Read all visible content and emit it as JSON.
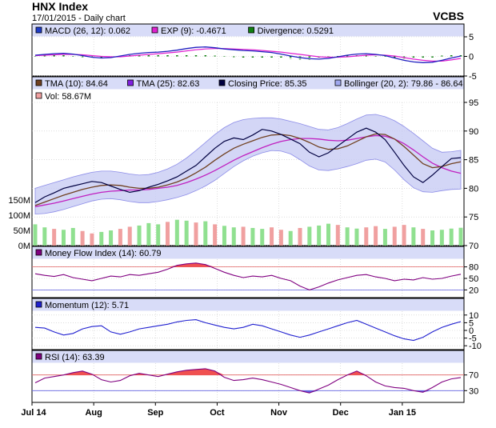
{
  "header": {
    "title": "HNX Index",
    "subtitle": "17/01/2015 - Daily chart",
    "brand": "VCBS"
  },
  "colors": {
    "panel_bg": "#ffffff",
    "legend_bg": "#d8dcf8",
    "grid": "#c8c8c8",
    "bollinger_fill": "#c8ccf4",
    "bollinger_edge": "#8c8ce8",
    "tma10": "#704020",
    "tma25": "#c020c0",
    "close": "#000040",
    "macd": "#2020c0",
    "exp": "#e020d0",
    "divergence": "#108010",
    "mfi": "#800080",
    "momentum": "#2020d0",
    "rsi": "#800080",
    "overbought_fill": "#f05050",
    "oversold_fill": "#6060e0",
    "vol_up": "#90e090",
    "vol_down": "#f0a0a0",
    "ref_line_high": "#e06060",
    "ref_line_low": "#6060e0"
  },
  "chart_data": [
    {
      "id": "macd",
      "type": "line",
      "legend": [
        {
          "icon": "blue-square-icon",
          "color": "#1e3cc8",
          "text": "MACD (26, 12): 0.062"
        },
        {
          "icon": "magenta-square-icon",
          "color": "#e020d0",
          "text": "EXP (9): -0.4671"
        },
        {
          "icon": "green-square-icon",
          "color": "#108010",
          "text": "Divergence: 0.5291"
        }
      ],
      "ylim": [
        -5,
        5
      ],
      "yticks": [
        -5,
        0,
        5
      ],
      "series": {
        "macd": [
          0.3,
          0.5,
          0.7,
          0.8,
          0.6,
          0.2,
          -0.2,
          -0.4,
          -0.3,
          0.1,
          0.5,
          0.8,
          1.0,
          1.1,
          1.3,
          1.6,
          2.0,
          2.3,
          2.4,
          2.2,
          1.9,
          1.7,
          1.5,
          1.4,
          1.2,
          1.0,
          0.6,
          0.1,
          -0.3,
          -0.6,
          -0.7,
          -0.5,
          -0.1,
          0.3,
          0.6,
          0.7,
          0.5,
          0.2,
          -0.4,
          -1.0,
          -1.4,
          -1.6,
          -1.5,
          -1.0,
          -0.4,
          0.1
        ],
        "exp": [
          0.2,
          0.3,
          0.4,
          0.5,
          0.5,
          0.4,
          0.2,
          0.0,
          -0.1,
          -0.1,
          0.1,
          0.3,
          0.5,
          0.7,
          0.9,
          1.1,
          1.4,
          1.7,
          1.9,
          2.0,
          2.0,
          1.9,
          1.8,
          1.7,
          1.5,
          1.3,
          1.1,
          0.8,
          0.5,
          0.2,
          -0.1,
          -0.2,
          -0.2,
          -0.1,
          0.1,
          0.3,
          0.4,
          0.3,
          0.1,
          -0.3,
          -0.7,
          -1.0,
          -1.2,
          -1.2,
          -0.9,
          -0.5
        ]
      }
    },
    {
      "id": "price",
      "type": "line",
      "legend": [
        {
          "icon": "brown-square-icon",
          "color": "#704020",
          "text": "TMA (10): 84.64"
        },
        {
          "icon": "purple-square-icon",
          "color": "#8020e0",
          "text": "TMA (25): 82.63"
        },
        {
          "icon": "navy-square-icon",
          "color": "#000040",
          "text": "Closing Price: 85.35"
        },
        {
          "icon": "lavender-square-icon",
          "color": "#a0a8f0",
          "text": "Bollinger (20, 2): 79.86 - 86.64"
        }
      ],
      "legend2": [
        {
          "icon": "pink-square-icon",
          "color": "#f0a0a0",
          "text": "Vol: 58.67M"
        }
      ],
      "ylim": [
        70,
        95
      ],
      "yticks": [
        70,
        75,
        80,
        85,
        90,
        95
      ],
      "vol_ticks": [
        "0M",
        "50M",
        "100M",
        "150M"
      ],
      "vol_max": 150,
      "close": [
        77.5,
        78.5,
        79.2,
        80.0,
        80.4,
        80.8,
        81.2,
        81.0,
        80.4,
        79.8,
        79.3,
        79.6,
        80.2,
        80.7,
        81.3,
        82.0,
        83.0,
        84.0,
        85.5,
        87.0,
        88.2,
        88.8,
        88.5,
        89.3,
        90.3,
        90.0,
        89.4,
        88.6,
        87.8,
        86.3,
        85.5,
        86.2,
        87.4,
        88.6,
        89.8,
        90.5,
        89.8,
        88.5,
        86.3,
        84.0,
        82.0,
        81.0,
        82.3,
        83.8,
        85.2,
        85.35
      ],
      "tma10": [
        77.0,
        77.6,
        78.2,
        78.8,
        79.3,
        79.8,
        80.2,
        80.5,
        80.6,
        80.5,
        80.2,
        80.0,
        80.0,
        80.2,
        80.6,
        81.1,
        81.8,
        82.7,
        83.7,
        84.9,
        86.0,
        87.0,
        87.7,
        88.3,
        88.9,
        89.3,
        89.4,
        89.2,
        88.7,
        88.0,
        87.2,
        86.8,
        86.9,
        87.4,
        88.2,
        89.0,
        89.5,
        89.4,
        88.6,
        87.3,
        85.8,
        84.3,
        83.6,
        83.8,
        84.3,
        84.64
      ],
      "tma25": [
        76.8,
        77.1,
        77.4,
        77.8,
        78.2,
        78.6,
        79.0,
        79.3,
        79.5,
        79.6,
        79.7,
        79.7,
        79.8,
        80.0,
        80.2,
        80.5,
        81.0,
        81.6,
        82.3,
        83.1,
        84.0,
        84.9,
        85.7,
        86.4,
        87.1,
        87.7,
        88.2,
        88.5,
        88.7,
        88.7,
        88.6,
        88.4,
        88.3,
        88.4,
        88.7,
        89.0,
        89.2,
        89.1,
        88.6,
        87.8,
        86.7,
        85.5,
        84.4,
        83.6,
        83.0,
        82.63
      ],
      "boll_upper": [
        80.0,
        80.5,
        81.0,
        81.5,
        82.0,
        82.4,
        82.8,
        83.0,
        83.0,
        82.8,
        82.5,
        82.3,
        82.4,
        82.8,
        83.4,
        84.2,
        85.3,
        86.6,
        88.0,
        89.4,
        90.6,
        91.5,
        92.0,
        92.2,
        92.3,
        92.3,
        92.1,
        91.7,
        91.3,
        90.8,
        90.3,
        90.2,
        90.6,
        91.3,
        92.1,
        92.8,
        92.9,
        92.5,
        91.8,
        90.8,
        89.6,
        88.3,
        87.0,
        86.3,
        86.4,
        86.64
      ],
      "boll_lower": [
        75.5,
        75.6,
        75.9,
        76.3,
        76.8,
        77.3,
        77.8,
        78.1,
        78.2,
        78.0,
        77.7,
        77.5,
        77.5,
        77.7,
        78.0,
        78.4,
        78.9,
        79.6,
        80.4,
        81.4,
        82.6,
        83.8,
        84.8,
        85.6,
        86.2,
        86.6,
        86.5,
        86.0,
        85.0,
        83.9,
        83.2,
        83.1,
        83.4,
        83.8,
        84.3,
        84.9,
        85.1,
        84.6,
        83.2,
        81.5,
        80.1,
        79.4,
        79.3,
        79.6,
        79.8,
        79.86
      ],
      "volume": [
        70,
        60,
        55,
        52,
        58,
        48,
        40,
        45,
        50,
        55,
        62,
        66,
        74,
        70,
        78,
        85,
        82,
        76,
        80,
        70,
        65,
        60,
        62,
        58,
        55,
        60,
        52,
        48,
        58,
        62,
        66,
        72,
        68,
        60,
        56,
        60,
        64,
        55,
        62,
        68,
        60,
        55,
        50,
        52,
        56,
        58.67
      ],
      "volume_up": [
        1,
        1,
        0,
        1,
        1,
        0,
        0,
        1,
        1,
        0,
        0,
        1,
        1,
        1,
        0,
        1,
        1,
        0,
        1,
        0,
        1,
        1,
        0,
        1,
        1,
        0,
        0,
        1,
        0,
        1,
        1,
        1,
        0,
        1,
        1,
        0,
        0,
        1,
        0,
        0,
        1,
        0,
        1,
        1,
        1,
        1
      ]
    },
    {
      "id": "mfi",
      "type": "line",
      "legend": [
        {
          "icon": "purple-square-icon",
          "color": "#800080",
          "text": "Money Flow Index (14): 60.79"
        }
      ],
      "ylim": [
        0,
        100
      ],
      "yticks": [
        20,
        50,
        80
      ],
      "ref_high": 80,
      "ref_low": 20,
      "values": [
        62,
        58,
        55,
        60,
        52,
        48,
        44,
        50,
        56,
        54,
        60,
        58,
        62,
        66,
        74,
        84,
        88,
        90,
        86,
        76,
        66,
        58,
        52,
        56,
        54,
        58,
        50,
        44,
        30,
        20,
        28,
        38,
        46,
        52,
        58,
        60,
        54,
        50,
        44,
        48,
        46,
        52,
        48,
        50,
        56,
        60.79
      ]
    },
    {
      "id": "momentum",
      "type": "line",
      "legend": [
        {
          "icon": "blue-square-icon",
          "color": "#2020d0",
          "text": "Momentum (12): 5.71"
        }
      ],
      "ylim": [
        -12.5,
        12.5
      ],
      "yticks": [
        -10,
        -5,
        0,
        5,
        10
      ],
      "values": [
        2.0,
        1.5,
        -1.0,
        -3.0,
        -2.0,
        1.0,
        2.5,
        3.0,
        -1.0,
        -2.5,
        -1.0,
        1.0,
        2.0,
        3.0,
        4.0,
        5.5,
        6.5,
        7.0,
        5.0,
        3.5,
        2.0,
        1.0,
        2.0,
        4.0,
        3.0,
        1.0,
        -1.0,
        -3.0,
        -4.5,
        -3.0,
        -1.0,
        1.0,
        3.0,
        5.0,
        6.5,
        4.0,
        1.5,
        -1.0,
        -3.5,
        -5.5,
        -6.5,
        -4.5,
        -1.0,
        2.0,
        4.0,
        5.71
      ]
    },
    {
      "id": "rsi",
      "type": "line",
      "legend": [
        {
          "icon": "purple-square-icon",
          "color": "#800080",
          "text": "RSI (14): 63.39"
        }
      ],
      "ylim": [
        0,
        100
      ],
      "yticks": [
        30,
        70
      ],
      "ref_high": 70,
      "ref_low": 30,
      "values": [
        50,
        62,
        66,
        70,
        76,
        80,
        72,
        58,
        52,
        56,
        68,
        74,
        70,
        66,
        72,
        78,
        82,
        84,
        86,
        80,
        64,
        56,
        58,
        62,
        58,
        52,
        46,
        38,
        30,
        24,
        34,
        44,
        58,
        70,
        80,
        68,
        52,
        42,
        38,
        36,
        30,
        26,
        38,
        52,
        60,
        63.39
      ],
      "x_labels": [
        "Jul 14",
        "Aug",
        "Sep",
        "Oct",
        "Nov",
        "Dec",
        "Jan 15"
      ]
    }
  ]
}
